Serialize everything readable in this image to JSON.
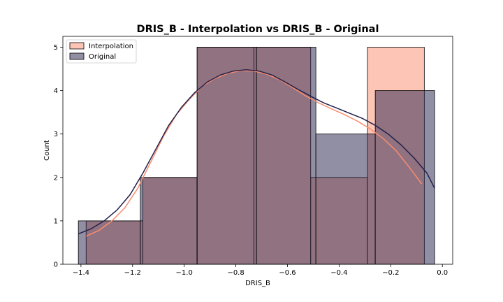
{
  "chart_data": {
    "type": "histogram",
    "title": "DRIS_B - Interpolation vs DRIS_B - Original",
    "xlabel": "DRIS_B",
    "ylabel": "Count",
    "xlim": [
      -1.47,
      0.04
    ],
    "ylim": [
      0,
      5.25
    ],
    "xticks": [
      -1.4,
      -1.2,
      -1.0,
      -0.8,
      -0.6,
      -0.4,
      -0.2,
      0.0
    ],
    "xtick_labels": [
      "−1.4",
      "−1.2",
      "−1.0",
      "−0.8",
      "−0.6",
      "−0.4",
      "−0.2",
      "0.0"
    ],
    "yticks": [
      0,
      1,
      2,
      3,
      4,
      5
    ],
    "ytick_labels": [
      "0",
      "1",
      "2",
      "3",
      "4",
      "5"
    ],
    "legend_position": "top-left",
    "series": [
      {
        "name": "Interpolation",
        "color": "#fa8c6e",
        "bins": [
          {
            "x0": -1.38,
            "x1": -1.16,
            "count": 1
          },
          {
            "x0": -1.16,
            "x1": -0.95,
            "count": 2
          },
          {
            "x0": -0.95,
            "x1": -0.73,
            "count": 5
          },
          {
            "x0": -0.73,
            "x1": -0.51,
            "count": 5
          },
          {
            "x0": -0.51,
            "x1": -0.29,
            "count": 2
          },
          {
            "x0": -0.29,
            "x1": -0.07,
            "count": 5
          }
        ],
        "kde": [
          [
            -1.38,
            0.65
          ],
          [
            -1.33,
            0.78
          ],
          [
            -1.28,
            1.0
          ],
          [
            -1.23,
            1.3
          ],
          [
            -1.18,
            1.75
          ],
          [
            -1.13,
            2.35
          ],
          [
            -1.08,
            2.95
          ],
          [
            -1.03,
            3.45
          ],
          [
            -0.98,
            3.8
          ],
          [
            -0.93,
            4.1
          ],
          [
            -0.88,
            4.28
          ],
          [
            -0.83,
            4.4
          ],
          [
            -0.78,
            4.46
          ],
          [
            -0.73,
            4.45
          ],
          [
            -0.68,
            4.38
          ],
          [
            -0.63,
            4.25
          ],
          [
            -0.58,
            4.07
          ],
          [
            -0.53,
            3.88
          ],
          [
            -0.48,
            3.72
          ],
          [
            -0.43,
            3.58
          ],
          [
            -0.38,
            3.45
          ],
          [
            -0.33,
            3.3
          ],
          [
            -0.28,
            3.12
          ],
          [
            -0.23,
            2.9
          ],
          [
            -0.18,
            2.62
          ],
          [
            -0.13,
            2.25
          ],
          [
            -0.08,
            1.85
          ]
        ]
      },
      {
        "name": "Original",
        "color": "#23204a",
        "bins": [
          {
            "x0": -1.41,
            "x1": -1.17,
            "count": 1
          },
          {
            "x0": -1.17,
            "x1": -0.95,
            "count": 2
          },
          {
            "x0": -0.95,
            "x1": -0.72,
            "count": 5
          },
          {
            "x0": -0.72,
            "x1": -0.49,
            "count": 5
          },
          {
            "x0": -0.49,
            "x1": -0.26,
            "count": 3
          },
          {
            "x0": -0.26,
            "x1": -0.03,
            "count": 4
          }
        ],
        "kde": [
          [
            -1.41,
            0.7
          ],
          [
            -1.36,
            0.82
          ],
          [
            -1.31,
            1.0
          ],
          [
            -1.26,
            1.25
          ],
          [
            -1.21,
            1.6
          ],
          [
            -1.16,
            2.1
          ],
          [
            -1.11,
            2.65
          ],
          [
            -1.06,
            3.2
          ],
          [
            -1.01,
            3.62
          ],
          [
            -0.96,
            3.95
          ],
          [
            -0.91,
            4.2
          ],
          [
            -0.86,
            4.36
          ],
          [
            -0.81,
            4.45
          ],
          [
            -0.76,
            4.48
          ],
          [
            -0.71,
            4.45
          ],
          [
            -0.66,
            4.36
          ],
          [
            -0.61,
            4.2
          ],
          [
            -0.56,
            4.03
          ],
          [
            -0.51,
            3.87
          ],
          [
            -0.46,
            3.72
          ],
          [
            -0.41,
            3.6
          ],
          [
            -0.36,
            3.48
          ],
          [
            -0.31,
            3.36
          ],
          [
            -0.26,
            3.2
          ],
          [
            -0.21,
            3.0
          ],
          [
            -0.16,
            2.75
          ],
          [
            -0.11,
            2.45
          ],
          [
            -0.06,
            2.1
          ],
          [
            -0.03,
            1.75
          ]
        ]
      }
    ]
  }
}
